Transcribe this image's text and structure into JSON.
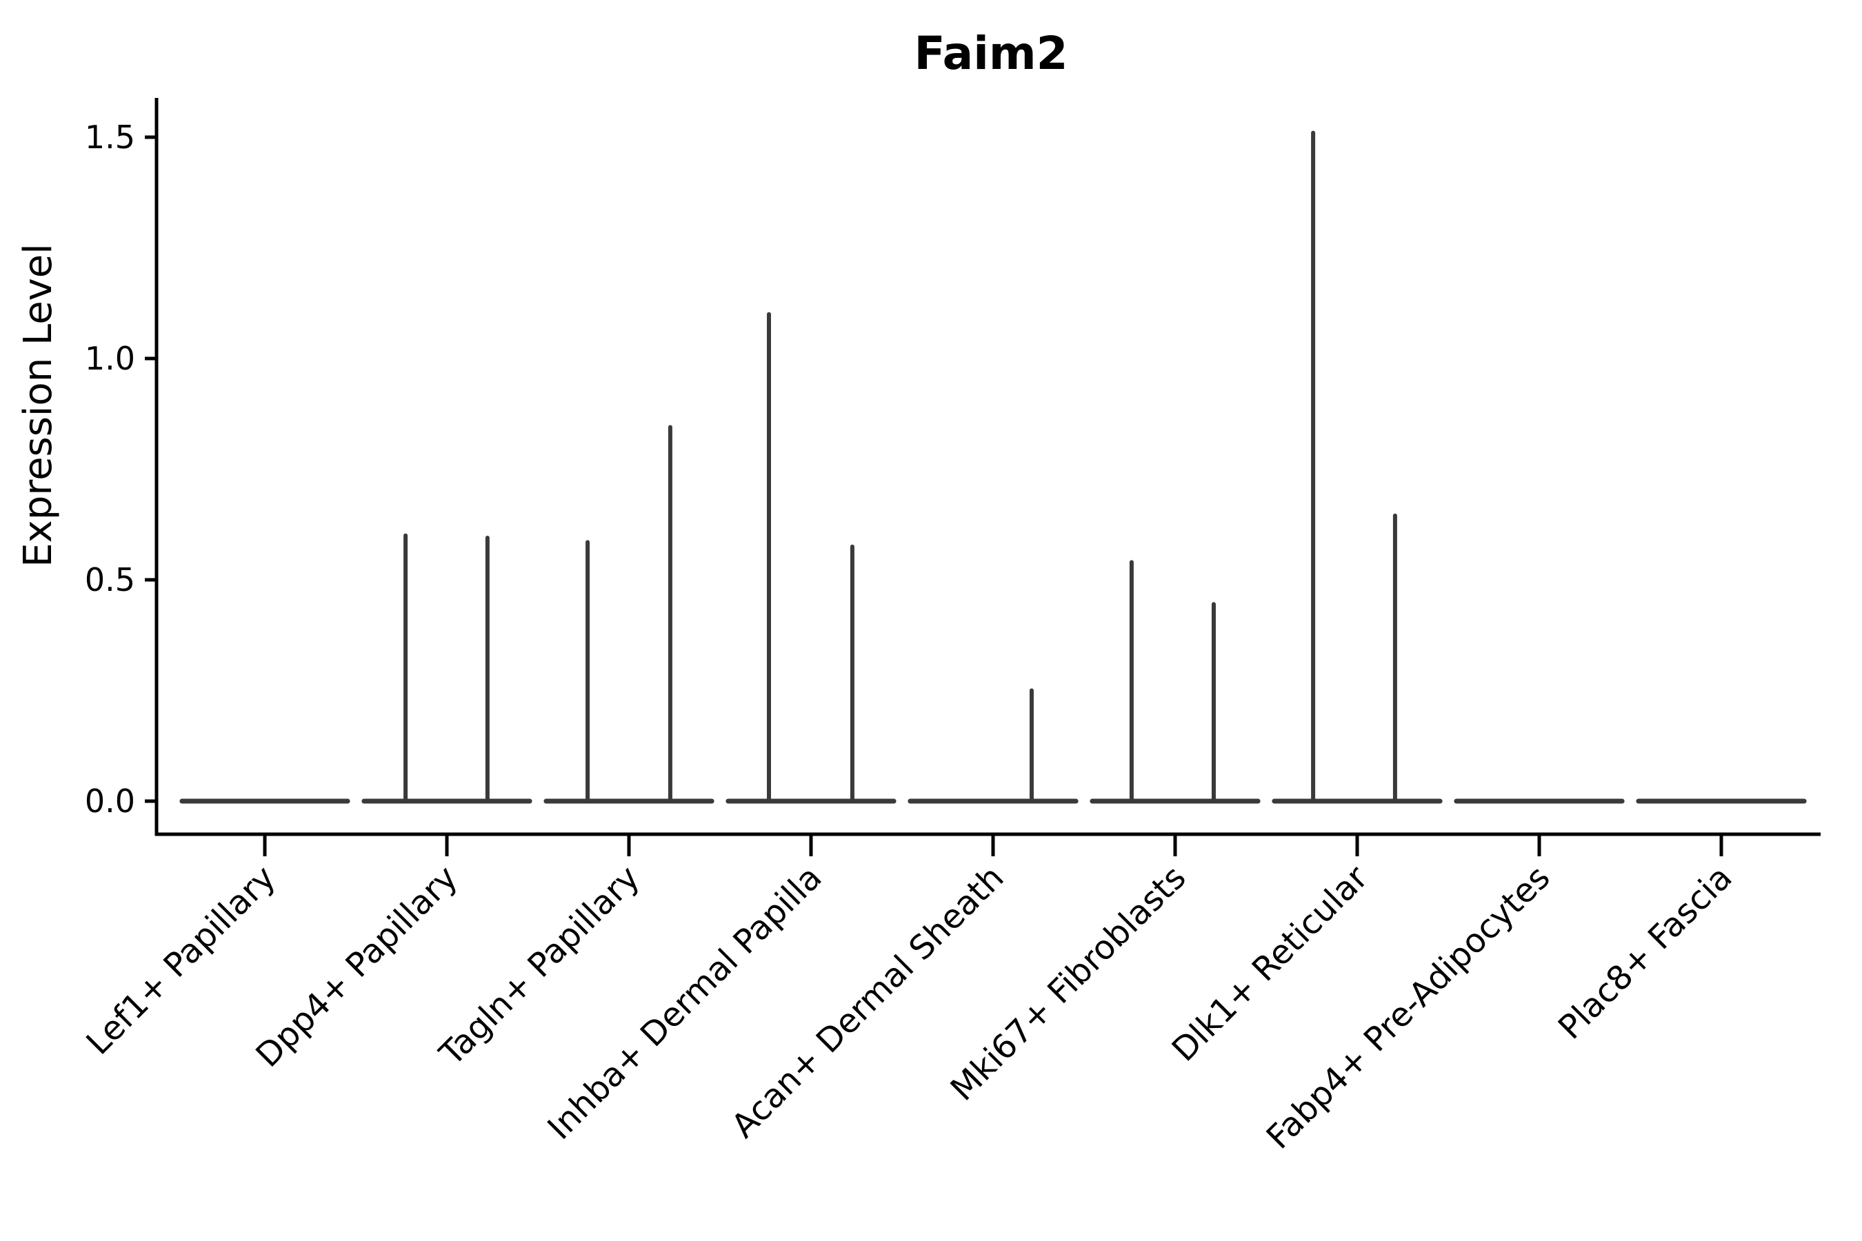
{
  "figure_title": "Faim2",
  "chart_data": {
    "type": "violin",
    "title": "Faim2",
    "xlabel": "",
    "ylabel": "Expression Level",
    "ylim": [
      -0.07,
      1.59
    ],
    "ytick_labels": [
      "0.0",
      "0.5",
      "1.0",
      "1.5"
    ],
    "ytick_values": [
      0.0,
      0.5,
      1.0,
      1.5
    ],
    "grid": false,
    "legend_position": "none",
    "categories": [
      "Lef1+ Papillary",
      "Dpp4+ Papillary",
      "Tagln+ Papillary",
      "Inhba+ Dermal Papilla",
      "Acan+ Dermal Sheath",
      "Mki67+ Fibroblasts",
      "Dlk1+ Reticular",
      "Fabp4+ Pre-Adipocytes",
      "Plac8+ Fascia"
    ],
    "violins": [
      {
        "category": "Lef1+ Papillary",
        "base_width": 0.91,
        "spikes": []
      },
      {
        "category": "Dpp4+ Papillary",
        "base_width": 0.91,
        "spikes": [
          {
            "dx": -0.227,
            "value": 0.6
          },
          {
            "dx": 0.223,
            "value": 0.595
          }
        ]
      },
      {
        "category": "Tagln+ Papillary",
        "base_width": 0.91,
        "spikes": [
          {
            "dx": -0.227,
            "value": 0.585
          },
          {
            "dx": 0.227,
            "value": 0.845
          }
        ]
      },
      {
        "category": "Inhba+ Dermal Papilla",
        "base_width": 0.91,
        "spikes": [
          {
            "dx": -0.231,
            "value": 1.1
          },
          {
            "dx": 0.227,
            "value": 0.575
          }
        ]
      },
      {
        "category": "Acan+ Dermal Sheath",
        "base_width": 0.91,
        "spikes": [
          {
            "dx": 0.212,
            "value": 0.25
          }
        ]
      },
      {
        "category": "Mki67+ Fibroblasts",
        "base_width": 0.91,
        "spikes": [
          {
            "dx": -0.239,
            "value": 0.54
          },
          {
            "dx": 0.212,
            "value": 0.445
          }
        ]
      },
      {
        "category": "Dlk1+ Reticular",
        "base_width": 0.91,
        "spikes": [
          {
            "dx": -0.242,
            "value": 1.51
          },
          {
            "dx": 0.208,
            "value": 0.645
          }
        ]
      },
      {
        "category": "Fabp4+ Pre-Adipocytes",
        "base_width": 0.91,
        "spikes": []
      },
      {
        "category": "Plac8+ Fascia",
        "base_width": 0.91,
        "spikes": []
      }
    ],
    "colors": {
      "violin": "#3a3a3a",
      "axis": "#000000",
      "text": "#000000",
      "background": "#ffffff"
    }
  }
}
